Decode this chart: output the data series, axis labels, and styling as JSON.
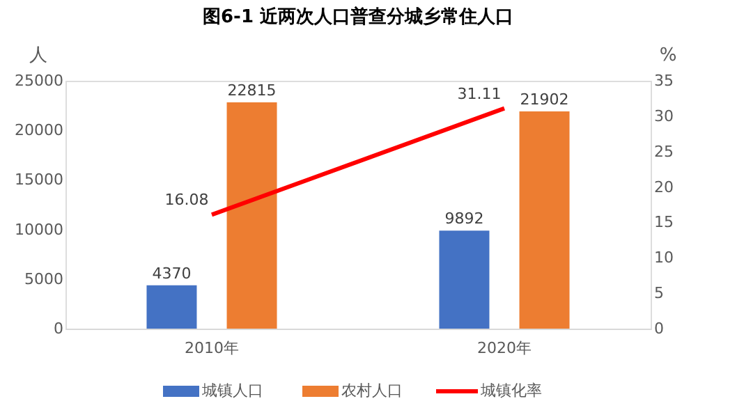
{
  "chart_data": {
    "type": "bar",
    "title": "图6-1  近两次人口普查分城乡常住人口",
    "ylabel": "人",
    "y2label": "%",
    "categories": [
      "2010年",
      "2020年"
    ],
    "series": [
      {
        "name": "城镇人口",
        "color": "#4472c4",
        "values": [
          4370,
          9892
        ]
      },
      {
        "name": "农村人口",
        "color": "#ed7d31",
        "values": [
          22815,
          21902
        ]
      },
      {
        "name": "城镇化率",
        "color": "#ff0000",
        "type": "line",
        "axis": "y2",
        "values": [
          16.08,
          31.11
        ]
      }
    ],
    "ylim": [
      0,
      25000
    ],
    "yticks": [
      0,
      5000,
      10000,
      15000,
      20000,
      25000
    ],
    "y2lim": [
      0,
      35
    ],
    "y2ticks": [
      0,
      5,
      10,
      15,
      20,
      25,
      30,
      35
    ],
    "data_labels": true,
    "grid": false,
    "legend": "bottom",
    "marker": "none",
    "line_style": "solid"
  }
}
